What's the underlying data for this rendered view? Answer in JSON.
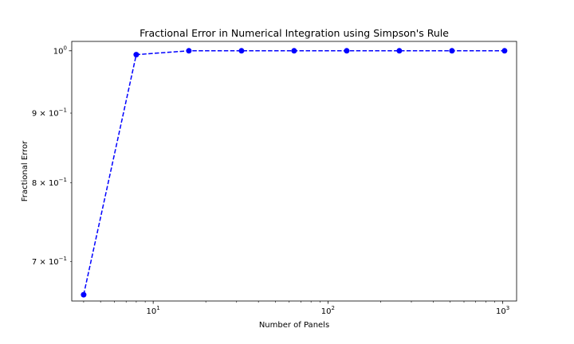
{
  "chart_data": {
    "type": "line",
    "title": "Fractional Error in Numerical Integration using Simpson's Rule",
    "xlabel": "Number of Panels",
    "ylabel": "Fractional Error",
    "xscale": "log",
    "yscale": "log",
    "xlim": [
      3.42,
      1200
    ],
    "ylim": [
      0.655,
      1.016
    ],
    "grid": false,
    "line_style": "dashed",
    "marker": "circle",
    "color": "#0000ff",
    "x": [
      4,
      8,
      16,
      32,
      64,
      128,
      256,
      512,
      1024
    ],
    "y": [
      0.662,
      0.9935,
      1.0,
      1.0,
      1.0,
      1.0,
      1.0,
      1.0,
      1.0
    ],
    "x_ticks": [
      {
        "value": 10,
        "base": "10",
        "exp": "1"
      },
      {
        "value": 100,
        "base": "10",
        "exp": "2"
      },
      {
        "value": 1000,
        "base": "10",
        "exp": "3"
      }
    ],
    "y_ticks": [
      {
        "value": 1.0,
        "mant": "",
        "base": "10",
        "exp": "0"
      },
      {
        "value": 0.9,
        "mant": "9 × ",
        "base": "10",
        "exp": "−1"
      },
      {
        "value": 0.8,
        "mant": "8 × ",
        "base": "10",
        "exp": "−1"
      },
      {
        "value": 0.7,
        "mant": "7 × ",
        "base": "10",
        "exp": "−1"
      }
    ]
  }
}
